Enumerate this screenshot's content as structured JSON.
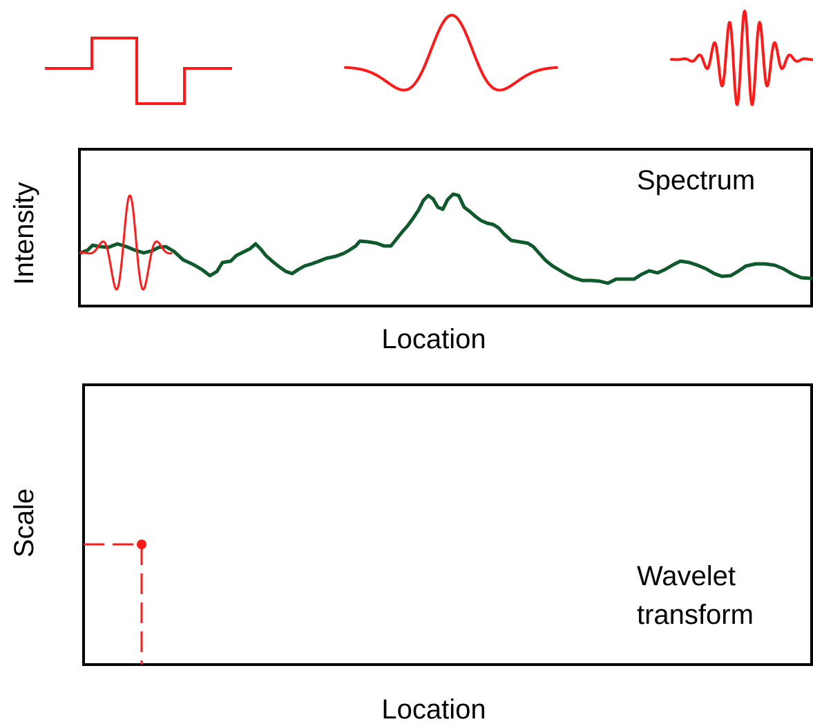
{
  "wavelets": [
    {
      "name": "Haar wavelet"
    },
    {
      "name": "Mexican hat wavelet"
    },
    {
      "name": "Morlet wavelet"
    }
  ],
  "spectrum_panel": {
    "title": "Spectrum",
    "ylabel": "Intensity",
    "xlabel": "Location"
  },
  "wavelet_panel": {
    "title_line1": "Wavelet",
    "title_line2": "transform",
    "ylabel": "Scale",
    "xlabel": "Location"
  },
  "colors": {
    "wavelet": "#ff1a1a",
    "spectrum": "#0f5a2c",
    "frame": "#000000"
  }
}
